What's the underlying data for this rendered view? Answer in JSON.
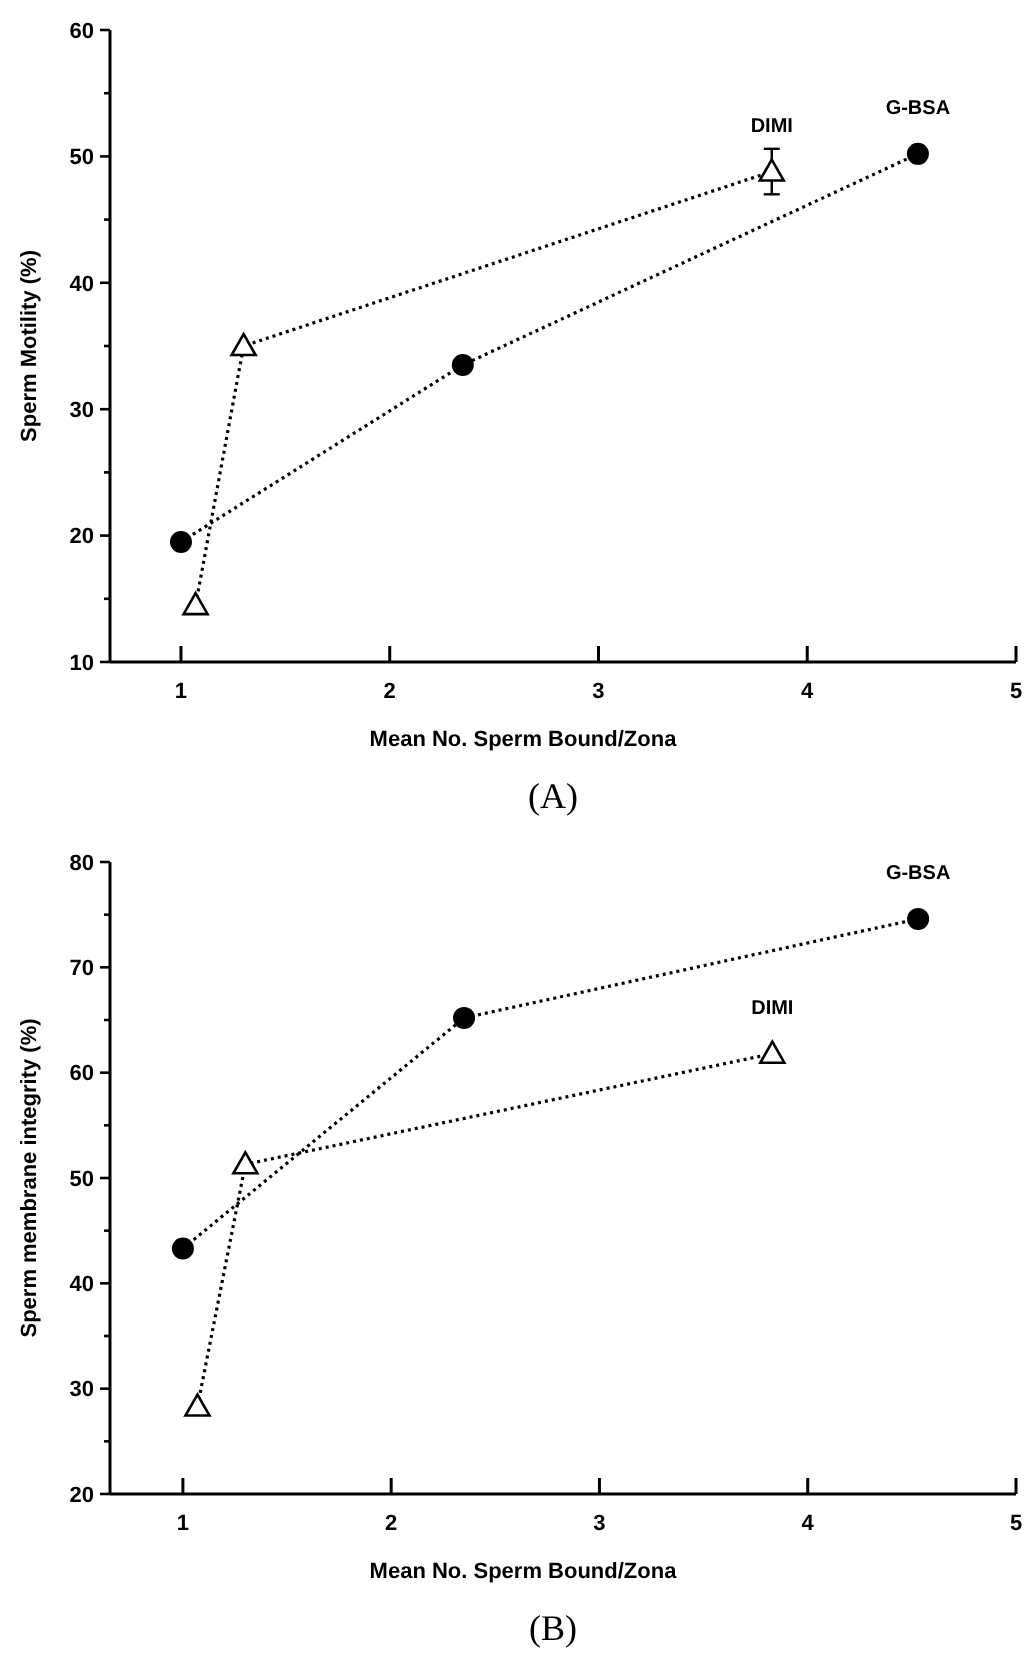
{
  "chart_data": [
    {
      "type": "line",
      "xlabel": "Mean No. Sperm Bound/Zona",
      "ylabel": "Sperm Motility (%)",
      "annotations": [
        "(A)"
      ],
      "xlim": [
        0.66,
        5
      ],
      "xticks": [
        1,
        2,
        3,
        4,
        5
      ],
      "ylim": [
        10,
        60
      ],
      "yticks": [
        10,
        {
          "value": 15,
          "label": null
        },
        20,
        {
          "value": 25,
          "label": null
        },
        30,
        {
          "value": 35,
          "label": null
        },
        40,
        {
          "value": 45,
          "label": null
        },
        50,
        {
          "value": 55,
          "label": null
        },
        60
      ],
      "line_style": "dotted",
      "series": [
        {
          "name": "G-BSA",
          "color": "#000000",
          "marker": "circle",
          "x": [
            1,
            2.35,
            4.53
          ],
          "values": [
            19.5,
            33.5,
            50.2
          ]
        },
        {
          "name": "DIMI",
          "color": "#000000",
          "marker": "triangle",
          "x": [
            1.07,
            1.3,
            3.83
          ],
          "values": [
            14.5,
            35,
            48.8
          ],
          "errors": [
            null,
            null,
            1.8
          ]
        }
      ]
    },
    {
      "type": "line",
      "xlabel": "Mean No. Sperm Bound/Zona",
      "ylabel": "Sperm membrane integrity (%)",
      "annotations": [
        "(B)"
      ],
      "xlim": [
        0.65,
        5
      ],
      "xticks": [
        1,
        2,
        3,
        4,
        5
      ],
      "ylim": [
        20,
        80
      ],
      "yticks": [
        20,
        {
          "value": 25,
          "label": null
        },
        30,
        {
          "value": 35,
          "label": null
        },
        40,
        {
          "value": 45,
          "label": null
        },
        50,
        {
          "value": 55,
          "label": null
        },
        60,
        {
          "value": 65,
          "label": null
        },
        70,
        {
          "value": 75,
          "label": null
        },
        80
      ],
      "line_style": "dotted",
      "series": [
        {
          "name": "G-BSA",
          "color": "#000000",
          "marker": "circle",
          "x": [
            1,
            2.35,
            4.53
          ],
          "values": [
            43.3,
            65.2,
            74.6
          ]
        },
        {
          "name": "DIMI",
          "color": "#000000",
          "marker": "triangle",
          "x": [
            1.07,
            1.3,
            3.83
          ],
          "values": [
            28.3,
            51.3,
            61.8
          ]
        }
      ]
    }
  ]
}
